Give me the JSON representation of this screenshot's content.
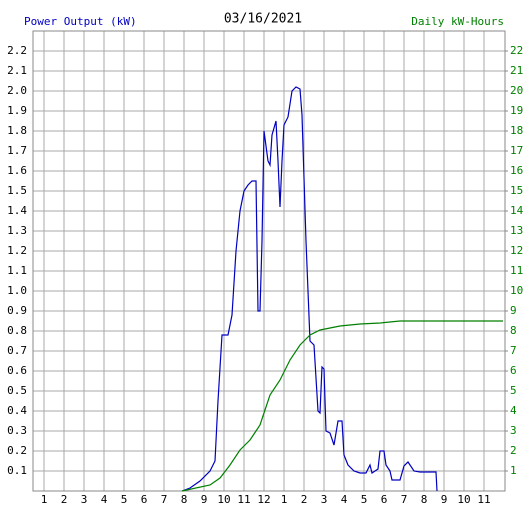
{
  "chart_data": {
    "type": "line",
    "title": "03/16/2021",
    "y_label": "Power Output (kW)",
    "y2_label": "Daily kW-Hours",
    "xlim": [
      0.45,
      24.05
    ],
    "xticks": [
      1,
      2,
      3,
      4,
      5,
      6,
      7,
      8,
      9,
      10,
      11,
      12,
      {
        "value": 13,
        "label": "1"
      },
      {
        "value": 14,
        "label": "2"
      },
      {
        "value": 15,
        "label": "3"
      },
      {
        "value": 16,
        "label": "4"
      },
      {
        "value": 17,
        "label": "5"
      },
      {
        "value": 18,
        "label": "6"
      },
      {
        "value": 19,
        "label": "7"
      },
      {
        "value": 20,
        "label": "8"
      },
      {
        "value": 21,
        "label": "9"
      },
      {
        "value": 22,
        "label": "10"
      },
      {
        "value": 23,
        "label": "11"
      }
    ],
    "ylim": [
      0,
      2.3
    ],
    "yticks": [
      0.1,
      0.2,
      0.3,
      0.4,
      0.5,
      0.6,
      0.7,
      0.8,
      0.9,
      {
        "value": 1,
        "label": "1.0"
      },
      1.1,
      1.2,
      1.3,
      1.4,
      1.5,
      1.6,
      1.7,
      1.8,
      1.9,
      {
        "value": 2,
        "label": "2.0"
      },
      2.1,
      2.2
    ],
    "y2lim": [
      0,
      23
    ],
    "y2ticks": [
      1,
      2,
      3,
      4,
      5,
      6,
      7,
      8,
      9,
      10,
      11,
      12,
      13,
      14,
      15,
      16,
      17,
      18,
      19,
      20,
      21,
      22
    ],
    "grid": true,
    "series": [
      {
        "name": "Power Output (kW)",
        "color": "#0000c0",
        "x": [
          7.9,
          8.3,
          8.8,
          9.3,
          9.55,
          9.7,
          9.9,
          10.2,
          10.4,
          10.6,
          10.8,
          11.0,
          11.2,
          11.4,
          11.6,
          11.7,
          11.8,
          11.9,
          12.0,
          12.2,
          12.3,
          12.4,
          12.6,
          12.7,
          12.8,
          12.9,
          13.0,
          13.2,
          13.4,
          13.6,
          13.8,
          13.9,
          14.1,
          14.3,
          14.5,
          14.7,
          14.8,
          14.9,
          15.0,
          15.1,
          15.3,
          15.5,
          15.7,
          15.9,
          16.0,
          16.2,
          16.5,
          16.8,
          17.1,
          17.3,
          17.4,
          17.7,
          17.8,
          18.0,
          18.1,
          18.3,
          18.4,
          18.8,
          19.0,
          19.2,
          19.5,
          19.8,
          20.6,
          20.65
        ],
        "values": [
          0,
          0.015,
          0.05,
          0.1,
          0.15,
          0.45,
          0.78,
          0.78,
          0.88,
          1.2,
          1.4,
          1.5,
          1.53,
          1.55,
          1.55,
          0.9,
          0.9,
          1.25,
          1.8,
          1.65,
          1.63,
          1.78,
          1.85,
          1.65,
          1.42,
          1.65,
          1.83,
          1.87,
          2.0,
          2.02,
          2.01,
          1.88,
          1.25,
          0.75,
          0.73,
          0.4,
          0.39,
          0.62,
          0.61,
          0.3,
          0.29,
          0.23,
          0.35,
          0.35,
          0.18,
          0.13,
          0.1,
          0.09,
          0.09,
          0.13,
          0.09,
          0.11,
          0.2,
          0.2,
          0.13,
          0.1,
          0.055,
          0.055,
          0.125,
          0.145,
          0.1,
          0.095,
          0.095,
          0
        ]
      },
      {
        "name": "Daily kW-Hours",
        "color": "#008000",
        "axis": "y2",
        "x": [
          7.9,
          9.3,
          9.8,
          10.3,
          10.8,
          11.3,
          11.8,
          12.05,
          12.3,
          12.8,
          13.3,
          13.8,
          14.3,
          14.8,
          15.8,
          16.8,
          17.8,
          18.8,
          19.8,
          23.95
        ],
        "values": [
          0,
          0.3,
          0.65,
          1.3,
          2.05,
          2.55,
          3.3,
          4.05,
          4.8,
          5.55,
          6.55,
          7.3,
          7.8,
          8.05,
          8.25,
          8.35,
          8.4,
          8.5,
          8.5,
          8.5
        ]
      }
    ]
  }
}
